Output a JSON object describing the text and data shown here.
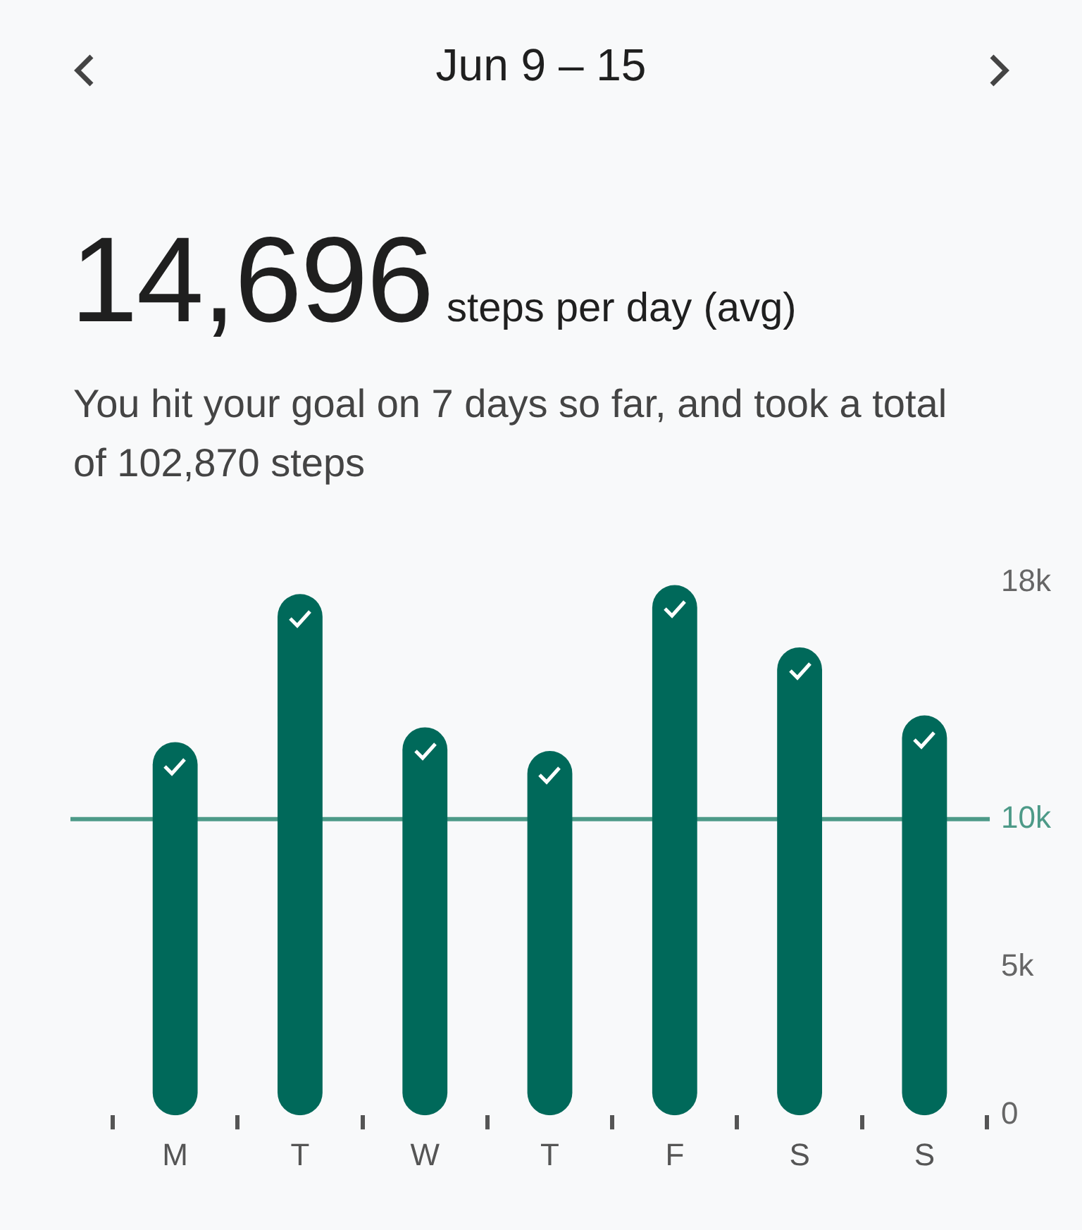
{
  "chart_data": {
    "type": "bar",
    "title": "Jun 9 – 15",
    "subtitle": "You hit your goal on 7 days so far, and took a total of 102,870 steps",
    "annotations": [
      "14,696",
      "steps per day (avg)"
    ],
    "categories": [
      "M",
      "T",
      "W",
      "T",
      "F",
      "S",
      "S"
    ],
    "values": [
      12600,
      17600,
      13100,
      12300,
      17900,
      15800,
      13500
    ],
    "color": "#00695a",
    "ylim": [
      0,
      18000
    ],
    "yticks": [
      0,
      {
        "value": 5000,
        "label": "5k"
      },
      {
        "value": 10000,
        "label": "10k"
      },
      {
        "value": 18000,
        "label": "18k"
      }
    ],
    "ref_lines": [
      {
        "axis": "y",
        "value": 10000,
        "color": "#4d9a88"
      }
    ],
    "grid": false,
    "legend": false
  }
}
